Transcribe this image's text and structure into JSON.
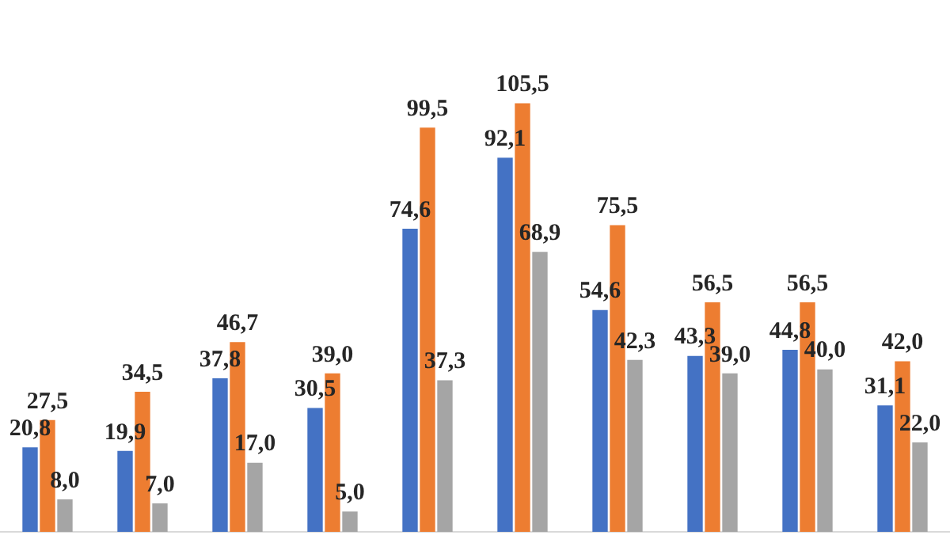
{
  "chart_data": {
    "type": "bar",
    "categories": [
      null,
      null,
      null,
      null,
      null,
      null,
      null,
      null,
      null,
      null
    ],
    "series": [
      {
        "color": "#4472c4",
        "values": [
          20.8,
          19.9,
          37.8,
          30.5,
          74.6,
          92.1,
          54.6,
          43.3,
          44.8,
          31.1
        ],
        "value_labels": [
          "20,8",
          "19,9",
          "37,8",
          "30,5",
          "74,6",
          "92,1",
          "54,6",
          "43,3",
          "44,8",
          "31,1"
        ]
      },
      {
        "color": "#ed7d31",
        "values": [
          27.5,
          34.5,
          46.7,
          39.0,
          99.5,
          105.5,
          75.5,
          56.5,
          56.5,
          42.0
        ],
        "value_labels": [
          "27,5",
          "34,5",
          "46,7",
          "39,0",
          "99,5",
          "105,5",
          "75,5",
          "56,5",
          "56,5",
          "42,0"
        ]
      },
      {
        "color": "#a5a5a5",
        "values": [
          8.0,
          7.0,
          17.0,
          5.0,
          37.3,
          68.9,
          42.3,
          39.0,
          40.0,
          22.0
        ],
        "value_labels": [
          "8,0",
          "7,0",
          "17,0",
          "5,0",
          "37,3",
          "68,9",
          "42,3",
          "39,0",
          "40,0",
          "22,0"
        ]
      }
    ],
    "grid": false,
    "legend": false
  }
}
